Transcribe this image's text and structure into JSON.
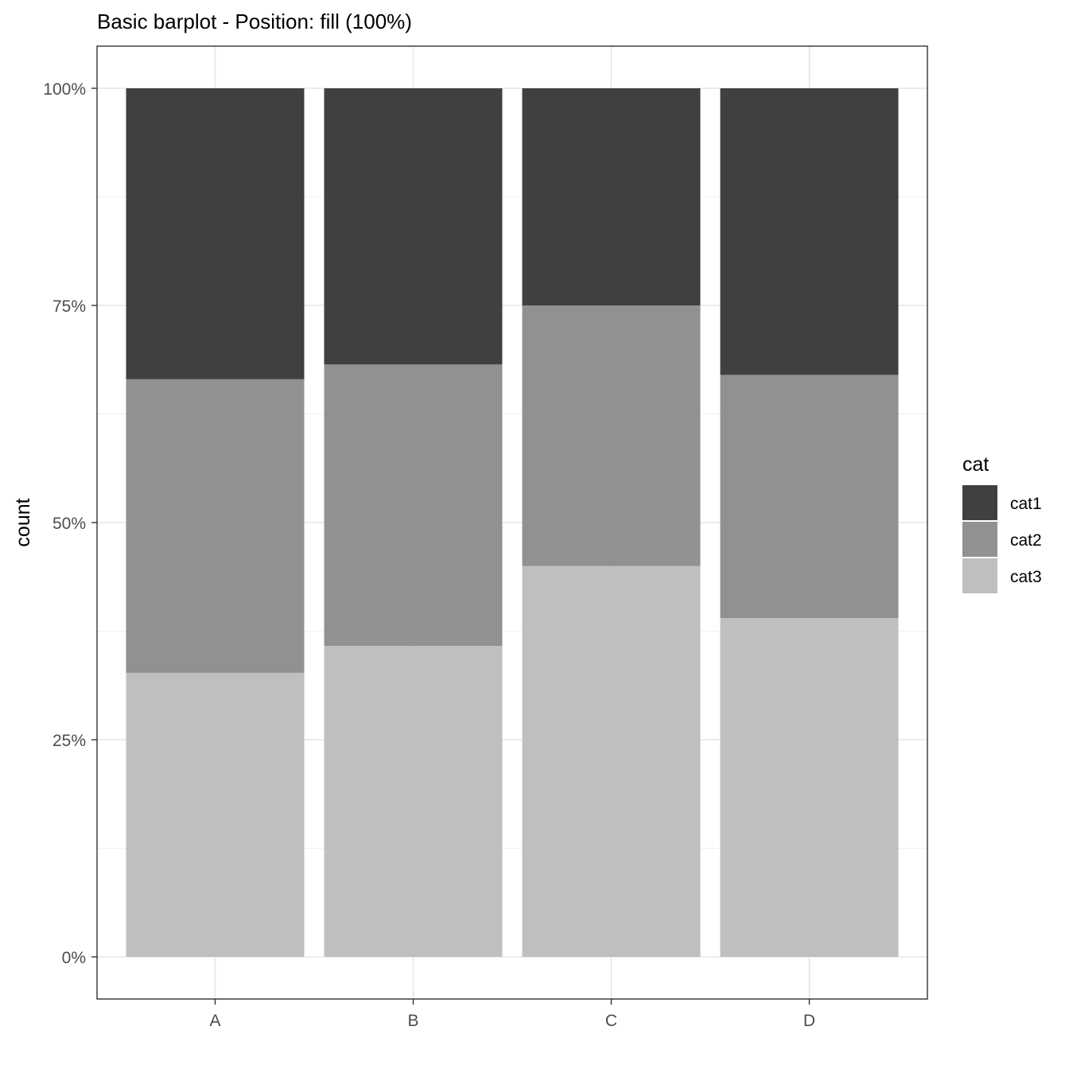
{
  "chart_data": {
    "type": "bar",
    "stacked": true,
    "position": "fill",
    "title": "Basic barplot - Position: fill (100%)",
    "xlabel": "",
    "ylabel": "count",
    "categories": [
      "A",
      "B",
      "C",
      "D"
    ],
    "series": [
      {
        "name": "cat1",
        "color": "#404040",
        "values": [
          0.335,
          0.318,
          0.25,
          0.33
        ]
      },
      {
        "name": "cat2",
        "color": "#919191",
        "values": [
          0.338,
          0.324,
          0.3,
          0.28
        ]
      },
      {
        "name": "cat3",
        "color": "#bfbfbf",
        "values": [
          0.327,
          0.358,
          0.45,
          0.39
        ]
      }
    ],
    "stack_order_bottom_to_top": [
      "cat3",
      "cat2",
      "cat1"
    ],
    "ylim": [
      0,
      1
    ],
    "yticks": [
      0,
      0.25,
      0.5,
      0.75,
      1.0
    ],
    "ytick_labels": [
      "0%",
      "25%",
      "50%",
      "75%",
      "100%"
    ],
    "grid": true,
    "legend": {
      "title": "cat",
      "placement": "right"
    }
  }
}
